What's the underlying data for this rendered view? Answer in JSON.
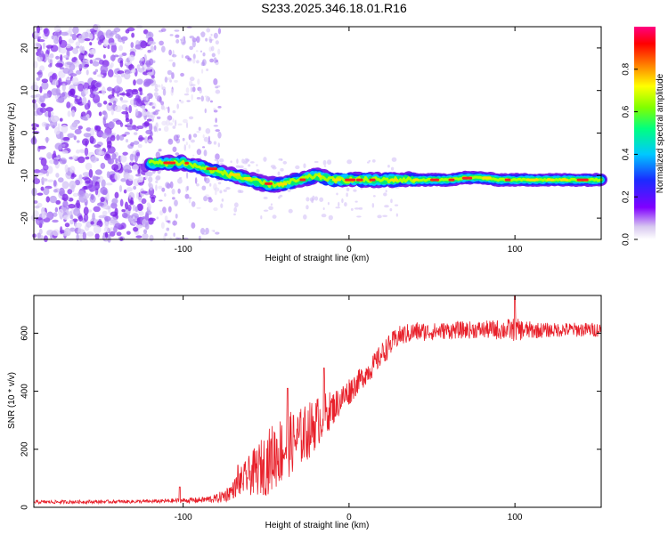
{
  "title": "S233.2025.346.18.01.R16",
  "chart_data": [
    {
      "type": "heatmap",
      "name": "spectrogram",
      "xlabel": "Height of straight line (km)",
      "ylabel": "Frequency (Hz)",
      "xlim": [
        -190,
        152
      ],
      "ylim": [
        -25,
        25
      ],
      "xticks": [
        -100,
        0,
        100
      ],
      "yticks": [
        20,
        10,
        0,
        -10,
        -20
      ],
      "trace": {
        "x": [
          -120,
          -110,
          -100,
          -90,
          -80,
          -70,
          -60,
          -50,
          -40,
          -30,
          -20,
          -10,
          0,
          10,
          20,
          30,
          40,
          50,
          60,
          70,
          80,
          90,
          100,
          110,
          120,
          130,
          140,
          152
        ],
        "freq": [
          -7,
          -7,
          -7,
          -8,
          -9,
          -10,
          -11,
          -12,
          -12,
          -11,
          -10,
          -11,
          -11,
          -11,
          -11,
          -11,
          -11,
          -11,
          -11,
          -10.5,
          -10.5,
          -11,
          -11,
          -11,
          -11,
          -11,
          -11,
          -11
        ]
      },
      "colorbar": {
        "label": "Normalized spectral amplitude",
        "range": [
          0,
          1
        ],
        "ticks": [
          0.0,
          0.2,
          0.4,
          0.6,
          0.8
        ]
      }
    },
    {
      "type": "line",
      "name": "snr",
      "xlabel": "Height of straight line (km)",
      "ylabel": "SNR (10 * v/v)",
      "xlim": [
        -190,
        152
      ],
      "ylim": [
        0,
        730
      ],
      "xticks": [
        -100,
        0,
        100
      ],
      "yticks": [
        0,
        200,
        400,
        600
      ],
      "color": "#e8202a",
      "envelope": {
        "x": [
          -190,
          -120,
          -90,
          -80,
          -75,
          -70,
          -65,
          -60,
          -55,
          -50,
          -45,
          -40,
          -35,
          -30,
          -25,
          -20,
          -15,
          -10,
          -5,
          0,
          5,
          10,
          15,
          20,
          25,
          30,
          40,
          50,
          60,
          80,
          100,
          110,
          120,
          130,
          140,
          152
        ],
        "mean": [
          18,
          20,
          25,
          30,
          40,
          60,
          90,
          110,
          130,
          150,
          180,
          200,
          220,
          240,
          260,
          290,
          320,
          340,
          370,
          400,
          430,
          460,
          490,
          530,
          560,
          590,
          605,
          605,
          610,
          612,
          612,
          610,
          610,
          612,
          612,
          612
        ],
        "spread": [
          6,
          6,
          10,
          15,
          25,
          30,
          50,
          70,
          90,
          110,
          120,
          120,
          110,
          100,
          100,
          90,
          80,
          60,
          50,
          50,
          40,
          40,
          40,
          40,
          40,
          35,
          35,
          30,
          30,
          30,
          40,
          30,
          25,
          25,
          25,
          25
        ]
      },
      "spikes": [
        {
          "x": -102,
          "y": 70
        },
        {
          "x": -67,
          "y": 145
        },
        {
          "x": -37,
          "y": 410
        },
        {
          "x": -15,
          "y": 480
        },
        {
          "x": 100,
          "y": 730
        }
      ]
    }
  ],
  "colorbar_tick_labels": [
    "0.0",
    "0.2",
    "0.4",
    "0.6",
    "0.8"
  ]
}
